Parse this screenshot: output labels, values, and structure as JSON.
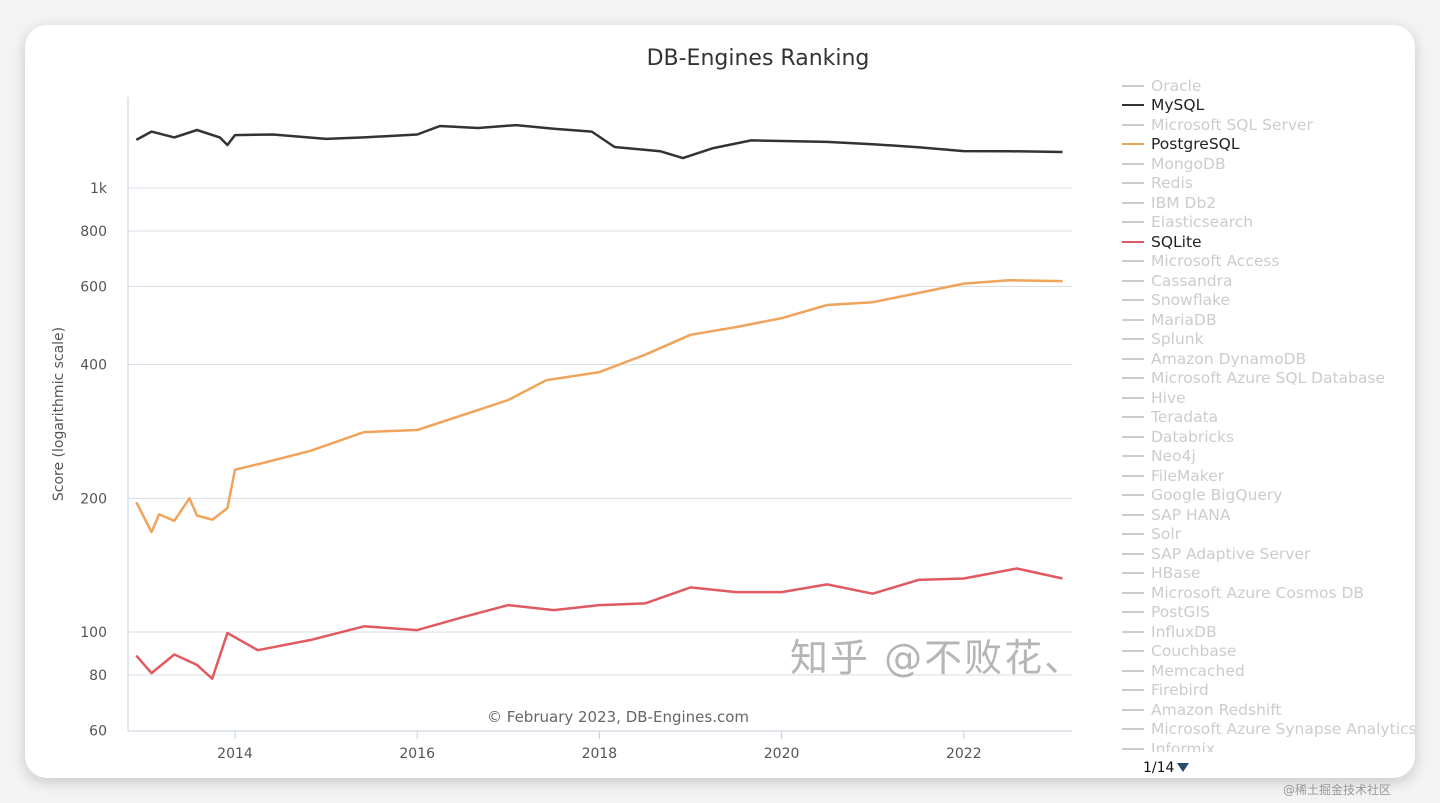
{
  "chart_data": {
    "type": "line",
    "title": "DB-Engines Ranking",
    "ylabel": "Score (logarithmic scale)",
    "xlabel": "",
    "yscale": "log",
    "ylim": [
      60,
      1600
    ],
    "xlim": [
      "2012-09",
      "2023-04"
    ],
    "yticks": [
      {
        "v": 60,
        "label": "60"
      },
      {
        "v": 80,
        "label": "80"
      },
      {
        "v": 100,
        "label": "100"
      },
      {
        "v": 200,
        "label": "200"
      },
      {
        "v": 400,
        "label": "400"
      },
      {
        "v": 600,
        "label": "600"
      },
      {
        "v": 800,
        "label": "800"
      },
      {
        "v": 1000,
        "label": "1k"
      }
    ],
    "xticks": [
      "2014",
      "2016",
      "2018",
      "2020",
      "2022"
    ],
    "grid": true,
    "legend_position": "right",
    "credit": "© February 2023, DB-Engines.com",
    "series": [
      {
        "name": "MySQL",
        "color": "#333333",
        "points": [
          [
            "2012-12",
            1283
          ],
          [
            "2013-02",
            1340
          ],
          [
            "2013-05",
            1300
          ],
          [
            "2013-08",
            1351
          ],
          [
            "2013-11",
            1300
          ],
          [
            "2013-12",
            1250
          ],
          [
            "2014-01",
            1316
          ],
          [
            "2014-06",
            1320
          ],
          [
            "2015-01",
            1290
          ],
          [
            "2015-06",
            1300
          ],
          [
            "2016-01",
            1320
          ],
          [
            "2016-04",
            1379
          ],
          [
            "2016-09",
            1365
          ],
          [
            "2017-02",
            1386
          ],
          [
            "2017-07",
            1360
          ],
          [
            "2017-12",
            1340
          ],
          [
            "2018-03",
            1237
          ],
          [
            "2018-09",
            1210
          ],
          [
            "2018-12",
            1168
          ],
          [
            "2019-04",
            1230
          ],
          [
            "2019-09",
            1280
          ],
          [
            "2020-01",
            1276
          ],
          [
            "2020-07",
            1270
          ],
          [
            "2021-01",
            1255
          ],
          [
            "2021-07",
            1235
          ],
          [
            "2022-01",
            1211
          ],
          [
            "2022-07",
            1210
          ],
          [
            "2023-02",
            1205
          ]
        ]
      },
      {
        "name": "PostgreSQL",
        "color": "#f0a35b",
        "points": [
          [
            "2012-12",
            196
          ],
          [
            "2013-02",
            168
          ],
          [
            "2013-03",
            184
          ],
          [
            "2013-05",
            178
          ],
          [
            "2013-07",
            200
          ],
          [
            "2013-08",
            183
          ],
          [
            "2013-10",
            179
          ],
          [
            "2013-12",
            190
          ],
          [
            "2014-01",
            232
          ],
          [
            "2014-05",
            241
          ],
          [
            "2014-11",
            256
          ],
          [
            "2015-06",
            282
          ],
          [
            "2016-01",
            285
          ],
          [
            "2016-07",
            308
          ],
          [
            "2017-01",
            333
          ],
          [
            "2017-06",
            369
          ],
          [
            "2018-01",
            385
          ],
          [
            "2018-07",
            421
          ],
          [
            "2019-01",
            467
          ],
          [
            "2019-07",
            486
          ],
          [
            "2020-01",
            509
          ],
          [
            "2020-07",
            545
          ],
          [
            "2021-01",
            553
          ],
          [
            "2021-07",
            580
          ],
          [
            "2022-01",
            609
          ],
          [
            "2022-07",
            620
          ],
          [
            "2023-02",
            617
          ]
        ]
      },
      {
        "name": "SQLite",
        "color": "#e05a5f",
        "points": [
          [
            "2012-12",
            88.5
          ],
          [
            "2013-02",
            80.8
          ],
          [
            "2013-05",
            89
          ],
          [
            "2013-08",
            84.3
          ],
          [
            "2013-10",
            78.5
          ],
          [
            "2013-12",
            99.5
          ],
          [
            "2014-04",
            91
          ],
          [
            "2014-11",
            96
          ],
          [
            "2015-06",
            103
          ],
          [
            "2016-01",
            101
          ],
          [
            "2016-07",
            108
          ],
          [
            "2017-01",
            115
          ],
          [
            "2017-07",
            112
          ],
          [
            "2018-01",
            115
          ],
          [
            "2018-07",
            116
          ],
          [
            "2019-01",
            126
          ],
          [
            "2019-07",
            123
          ],
          [
            "2020-01",
            123
          ],
          [
            "2020-07",
            128
          ],
          [
            "2021-01",
            122
          ],
          [
            "2021-07",
            131
          ],
          [
            "2022-01",
            132
          ],
          [
            "2022-08",
            139
          ],
          [
            "2023-02",
            132
          ]
        ]
      }
    ]
  },
  "legend": {
    "items": [
      {
        "label": "Oracle",
        "active": false
      },
      {
        "label": "MySQL",
        "active": true,
        "color": "#333333"
      },
      {
        "label": "Microsoft SQL Server",
        "active": false
      },
      {
        "label": "PostgreSQL",
        "active": true,
        "color": "#f0a35b"
      },
      {
        "label": "MongoDB",
        "active": false
      },
      {
        "label": "Redis",
        "active": false
      },
      {
        "label": "IBM Db2",
        "active": false
      },
      {
        "label": "Elasticsearch",
        "active": false
      },
      {
        "label": "SQLite",
        "active": true,
        "color": "#e05a5f"
      },
      {
        "label": "Microsoft Access",
        "active": false
      },
      {
        "label": "Cassandra",
        "active": false
      },
      {
        "label": "Snowflake",
        "active": false
      },
      {
        "label": "MariaDB",
        "active": false
      },
      {
        "label": "Splunk",
        "active": false
      },
      {
        "label": "Amazon DynamoDB",
        "active": false
      },
      {
        "label": "Microsoft Azure SQL Database",
        "active": false
      },
      {
        "label": "Hive",
        "active": false
      },
      {
        "label": "Teradata",
        "active": false
      },
      {
        "label": "Databricks",
        "active": false
      },
      {
        "label": "Neo4j",
        "active": false
      },
      {
        "label": "FileMaker",
        "active": false
      },
      {
        "label": "Google BigQuery",
        "active": false
      },
      {
        "label": "SAP HANA",
        "active": false
      },
      {
        "label": "Solr",
        "active": false
      },
      {
        "label": "SAP Adaptive Server",
        "active": false
      },
      {
        "label": "HBase",
        "active": false
      },
      {
        "label": "Microsoft Azure Cosmos DB",
        "active": false
      },
      {
        "label": "PostGIS",
        "active": false
      },
      {
        "label": "InfluxDB",
        "active": false
      },
      {
        "label": "Couchbase",
        "active": false
      },
      {
        "label": "Memcached",
        "active": false
      },
      {
        "label": "Firebird",
        "active": false
      },
      {
        "label": "Amazon Redshift",
        "active": false
      },
      {
        "label": "Microsoft Azure Synapse Analytics",
        "active": false
      },
      {
        "label": "Informix",
        "active": false
      }
    ],
    "pager": "1/14"
  },
  "watermark": {
    "main": "知乎 @不败花、",
    "sub": "@稀土掘金技术社区"
  }
}
